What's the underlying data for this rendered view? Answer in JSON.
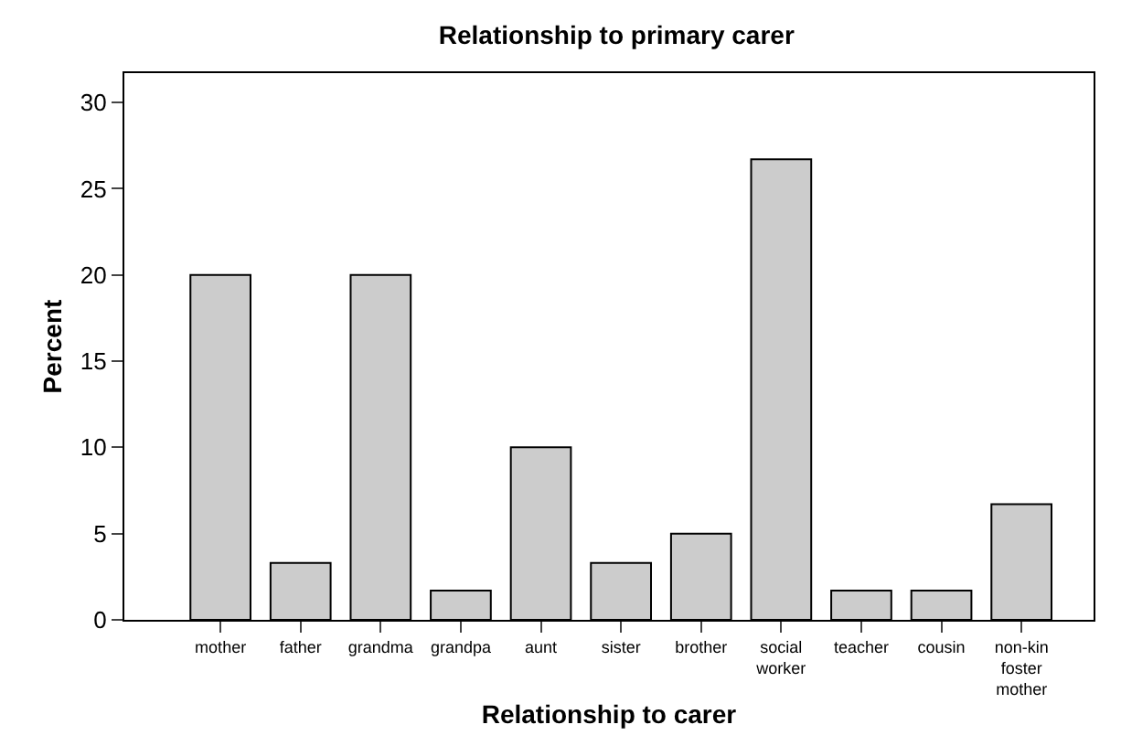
{
  "chart_data": {
    "type": "bar",
    "title": "Relationship to primary carer",
    "xlabel": "Relationship to carer",
    "ylabel": "Percent",
    "categories": [
      "mother",
      "father",
      "grandma",
      "grandpa",
      "aunt",
      "sister",
      "brother",
      "social\nworker",
      "teacher",
      "cousin",
      "non-kin\nfoster\nmother"
    ],
    "values": [
      20,
      3.3,
      20,
      1.7,
      10,
      3.3,
      5,
      26.7,
      1.7,
      1.7,
      6.7
    ],
    "color": "#cccccc",
    "ylim": [
      0,
      31.7
    ],
    "yticks": [
      0,
      5,
      10,
      15,
      20,
      25,
      30
    ]
  }
}
